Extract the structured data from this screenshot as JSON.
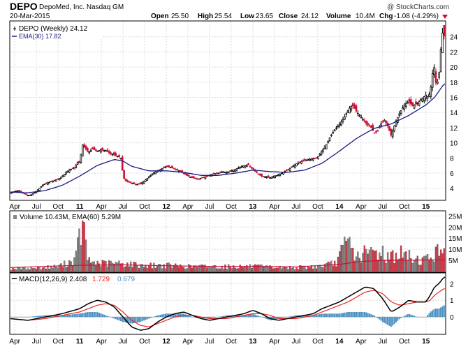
{
  "header": {
    "symbol": "DEPO",
    "company": "DepoMed, Inc.  Nasdaq GM",
    "date": "20-Mar-2015",
    "quote": {
      "open_label": "Open",
      "open": "25.50",
      "high_label": "High",
      "high": "25.54",
      "low_label": "Low",
      "low": "23.65",
      "close_label": "Close",
      "close": "24.12",
      "volume_label": "Volume",
      "volume": "10.4M",
      "chg_label": "Chg",
      "chg": "-1.08 (-4.29%)"
    },
    "watermark": "@ StockCharts.com"
  },
  "colors": {
    "up": "#000000",
    "down": "#cc1133",
    "ema": "#1a1a80",
    "volume_up": "#888888",
    "volume_down": "#dd3344",
    "macd_line": "#000000",
    "signal_line": "#ee2222",
    "histogram": "#4a8fc0"
  },
  "chart_data": [
    {
      "type": "candlestick",
      "title": "",
      "legend": [
        {
          "key": "price",
          "text": "DEPO (Weekly) 24.12"
        },
        {
          "key": "ema",
          "text": "EMA(30) 17.82"
        }
      ],
      "ylim": [
        2.5,
        26
      ],
      "y_ticks": [
        4,
        6,
        8,
        10,
        12,
        14,
        16,
        18,
        20,
        22,
        24
      ],
      "x_ticks": [
        "Apr",
        "Jul",
        "Oct",
        "11",
        "Apr",
        "Jul",
        "Oct",
        "12",
        "Apr",
        "Jul",
        "Oct",
        "13",
        "Apr",
        "Jul",
        "Oct",
        "14",
        "Apr",
        "Jul",
        "Oct",
        "15"
      ],
      "x_tick_positions": [
        0.25,
        0.5,
        0.75,
        1,
        1.25,
        1.5,
        1.75,
        2,
        2.25,
        2.5,
        2.75,
        3,
        3.25,
        3.5,
        3.75,
        4,
        4.25,
        4.5,
        4.75,
        5
      ],
      "x_range": [
        0.2,
        5.22
      ],
      "price_key": {
        "x": [
          0.2,
          0.28,
          0.35,
          0.42,
          0.5,
          0.58,
          0.67,
          0.75,
          0.8,
          0.85,
          0.9,
          0.95,
          0.98,
          1.0,
          1.03,
          1.06,
          1.1,
          1.15,
          1.2,
          1.25,
          1.3,
          1.35,
          1.4,
          1.45,
          1.48,
          1.5,
          1.52,
          1.55,
          1.6,
          1.65,
          1.7,
          1.75,
          1.8,
          1.85,
          1.9,
          1.95,
          2.0,
          2.05,
          2.1,
          2.15,
          2.2,
          2.25,
          2.3,
          2.35,
          2.4,
          2.45,
          2.5,
          2.55,
          2.6,
          2.65,
          2.7,
          2.75,
          2.8,
          2.85,
          2.9,
          2.95,
          3.0,
          3.05,
          3.1,
          3.15,
          3.2,
          3.25,
          3.3,
          3.35,
          3.4,
          3.45,
          3.5,
          3.55,
          3.6,
          3.65,
          3.7,
          3.75,
          3.8,
          3.85,
          3.9,
          3.95,
          4.0,
          4.05,
          4.1,
          4.15,
          4.2,
          4.25,
          4.28,
          4.32,
          4.36,
          4.4,
          4.44,
          4.48,
          4.52,
          4.56,
          4.6,
          4.65,
          4.7,
          4.75,
          4.8,
          4.85,
          4.9,
          4.95,
          5.0,
          5.03,
          5.06,
          5.09,
          5.12,
          5.15,
          5.18,
          5.2,
          5.21
        ],
        "y": [
          3.4,
          3.7,
          3.3,
          3.0,
          3.6,
          4.5,
          4.9,
          5.2,
          5.6,
          6.2,
          6.5,
          6.9,
          7.5,
          7.3,
          9.8,
          9.3,
          8.8,
          9.2,
          8.9,
          9.1,
          9.0,
          8.6,
          8.4,
          8.2,
          7.9,
          5.6,
          5.1,
          4.9,
          4.7,
          4.5,
          4.6,
          5.0,
          5.5,
          6.0,
          6.3,
          6.6,
          6.9,
          6.8,
          6.5,
          6.3,
          6.0,
          5.6,
          5.4,
          5.2,
          5.3,
          5.5,
          5.7,
          5.9,
          6.0,
          6.2,
          6.1,
          6.3,
          6.5,
          6.8,
          7.0,
          7.1,
          6.5,
          6.0,
          5.6,
          5.5,
          5.4,
          5.6,
          5.8,
          6.1,
          6.4,
          6.8,
          7.2,
          7.5,
          7.7,
          7.8,
          7.9,
          8.1,
          8.9,
          9.8,
          10.9,
          11.8,
          12.4,
          13.2,
          14.3,
          15.0,
          14.1,
          13.4,
          13.0,
          12.4,
          12.2,
          11.3,
          11.5,
          12.5,
          13.0,
          12.2,
          10.9,
          12.8,
          14.0,
          15.0,
          15.4,
          14.9,
          15.2,
          15.8,
          16.3,
          16.0,
          17.5,
          20.5,
          17.4,
          18.8,
          23.6,
          25.2,
          24.1
        ]
      },
      "ema_key": {
        "x": [
          0.2,
          0.4,
          0.6,
          0.8,
          1.0,
          1.2,
          1.4,
          1.5,
          1.6,
          1.8,
          2.0,
          2.2,
          2.4,
          2.6,
          2.8,
          3.0,
          3.2,
          3.4,
          3.6,
          3.8,
          4.0,
          4.2,
          4.4,
          4.6,
          4.8,
          5.0,
          5.1,
          5.21
        ],
        "y": [
          3.5,
          3.4,
          3.7,
          4.4,
          5.6,
          7.0,
          7.8,
          7.6,
          6.9,
          6.3,
          6.3,
          6.1,
          5.7,
          5.7,
          6.0,
          6.4,
          6.2,
          6.1,
          6.4,
          7.3,
          8.9,
          10.6,
          11.9,
          12.5,
          13.6,
          15.0,
          16.0,
          17.8
        ]
      }
    },
    {
      "type": "bar",
      "title": "",
      "legend": [
        {
          "key": "volume",
          "text": "Volume 10.43M, EMA(60) 5.29M"
        }
      ],
      "ylim": [
        0,
        27
      ],
      "y_ticks": [
        5,
        10,
        15,
        20,
        25
      ],
      "y_tick_labels": [
        "5M",
        "10M",
        "15M",
        "20M",
        "25M"
      ],
      "volume_key": {
        "x": [
          0.2,
          0.5,
          0.75,
          0.85,
          0.95,
          1.03,
          1.1,
          1.25,
          1.5,
          1.75,
          2.0,
          2.25,
          2.5,
          2.75,
          3.0,
          3.25,
          3.5,
          3.75,
          3.95,
          4.1,
          4.2,
          4.3,
          4.5,
          4.55,
          4.7,
          4.9,
          5.0,
          5.1,
          5.21
        ],
        "y": [
          1.5,
          1.8,
          2.5,
          4.0,
          6.0,
          25.0,
          5.0,
          4.0,
          4.0,
          3.0,
          3.0,
          2.5,
          2.5,
          2.5,
          2.5,
          2.0,
          2.0,
          2.5,
          4.0,
          15.0,
          7.0,
          9.0,
          10.0,
          7.0,
          9.0,
          6.0,
          6.0,
          9.0,
          10.4
        ]
      },
      "volume_ema_key": {
        "x": [
          0.2,
          1.0,
          1.5,
          2.0,
          2.5,
          3.0,
          3.5,
          4.0,
          4.25,
          4.5,
          5.0,
          5.21
        ],
        "y": [
          1.8,
          2.8,
          3.0,
          2.6,
          2.3,
          2.3,
          2.1,
          3.2,
          4.5,
          5.0,
          5.2,
          5.3
        ]
      }
    },
    {
      "type": "line",
      "title": "",
      "legend": [
        {
          "key": "macd",
          "text": "MACD(12,26,9) 2.408"
        },
        {
          "key": "signal",
          "text": "1.729"
        },
        {
          "key": "hist",
          "text": "0.679"
        }
      ],
      "ylim": [
        -1.0,
        2.6
      ],
      "y_ticks": [
        0,
        1,
        2
      ],
      "macd_key": {
        "x": [
          0.2,
          0.4,
          0.6,
          0.8,
          1.0,
          1.1,
          1.2,
          1.3,
          1.4,
          1.5,
          1.6,
          1.7,
          1.8,
          1.9,
          2.0,
          2.1,
          2.2,
          2.3,
          2.4,
          2.5,
          2.6,
          2.7,
          2.8,
          2.9,
          3.0,
          3.1,
          3.2,
          3.3,
          3.4,
          3.5,
          3.6,
          3.7,
          3.8,
          3.9,
          4.0,
          4.1,
          4.2,
          4.3,
          4.4,
          4.5,
          4.6,
          4.7,
          4.8,
          4.9,
          5.0,
          5.05,
          5.1,
          5.15,
          5.21
        ],
        "y": [
          -0.1,
          -0.2,
          0.0,
          0.2,
          0.5,
          0.8,
          1.0,
          0.9,
          0.6,
          0.0,
          -0.6,
          -0.8,
          -0.7,
          -0.3,
          0.0,
          0.2,
          0.3,
          0.1,
          -0.1,
          -0.2,
          -0.1,
          0.0,
          0.1,
          0.2,
          0.4,
          0.2,
          -0.1,
          -0.2,
          -0.1,
          0.0,
          0.1,
          0.2,
          0.5,
          0.7,
          0.9,
          1.2,
          1.5,
          1.8,
          1.7,
          1.1,
          0.3,
          0.6,
          1.0,
          0.9,
          0.9,
          1.3,
          1.8,
          2.0,
          2.4
        ]
      },
      "signal_key": {
        "x": [
          0.2,
          0.4,
          0.6,
          0.8,
          1.0,
          1.1,
          1.2,
          1.3,
          1.4,
          1.5,
          1.6,
          1.7,
          1.8,
          1.9,
          2.0,
          2.1,
          2.2,
          2.3,
          2.4,
          2.5,
          2.6,
          2.7,
          2.8,
          2.9,
          3.0,
          3.1,
          3.2,
          3.3,
          3.4,
          3.5,
          3.6,
          3.7,
          3.8,
          3.9,
          4.0,
          4.1,
          4.2,
          4.3,
          4.4,
          4.5,
          4.6,
          4.7,
          4.8,
          4.9,
          5.0,
          5.05,
          5.1,
          5.15,
          5.21
        ],
        "y": [
          -0.1,
          -0.2,
          -0.1,
          0.1,
          0.3,
          0.5,
          0.7,
          0.8,
          0.7,
          0.3,
          -0.2,
          -0.5,
          -0.6,
          -0.4,
          -0.2,
          0.0,
          0.1,
          0.1,
          0.0,
          -0.1,
          -0.1,
          -0.1,
          0.0,
          0.1,
          0.2,
          0.2,
          0.1,
          -0.1,
          -0.1,
          -0.1,
          0.0,
          0.1,
          0.3,
          0.5,
          0.7,
          0.9,
          1.2,
          1.5,
          1.6,
          1.4,
          0.9,
          0.7,
          0.8,
          0.9,
          0.9,
          1.0,
          1.3,
          1.5,
          1.7
        ]
      },
      "hist_key": {
        "x": [
          0.2,
          0.4,
          0.6,
          0.8,
          1.0,
          1.1,
          1.2,
          1.3,
          1.4,
          1.5,
          1.6,
          1.7,
          1.8,
          1.9,
          2.0,
          2.1,
          2.2,
          2.3,
          2.4,
          2.5,
          2.6,
          2.7,
          2.8,
          2.9,
          3.0,
          3.1,
          3.2,
          3.3,
          3.4,
          3.5,
          3.6,
          3.7,
          3.8,
          3.9,
          4.0,
          4.1,
          4.2,
          4.3,
          4.4,
          4.5,
          4.6,
          4.7,
          4.8,
          4.9,
          5.0,
          5.05,
          5.1,
          5.15,
          5.21
        ],
        "y": [
          0.0,
          0.0,
          0.1,
          0.1,
          0.2,
          0.3,
          0.3,
          0.1,
          -0.1,
          -0.3,
          -0.4,
          -0.3,
          -0.1,
          0.1,
          0.2,
          0.2,
          0.2,
          0.0,
          -0.1,
          -0.1,
          0.0,
          0.1,
          0.1,
          0.1,
          0.2,
          0.0,
          -0.2,
          -0.1,
          0.0,
          0.1,
          0.1,
          0.1,
          0.2,
          0.2,
          0.2,
          0.3,
          0.3,
          0.3,
          0.1,
          -0.3,
          -0.6,
          -0.1,
          0.2,
          0.0,
          0.0,
          0.3,
          0.5,
          0.5,
          0.7
        ]
      }
    }
  ]
}
